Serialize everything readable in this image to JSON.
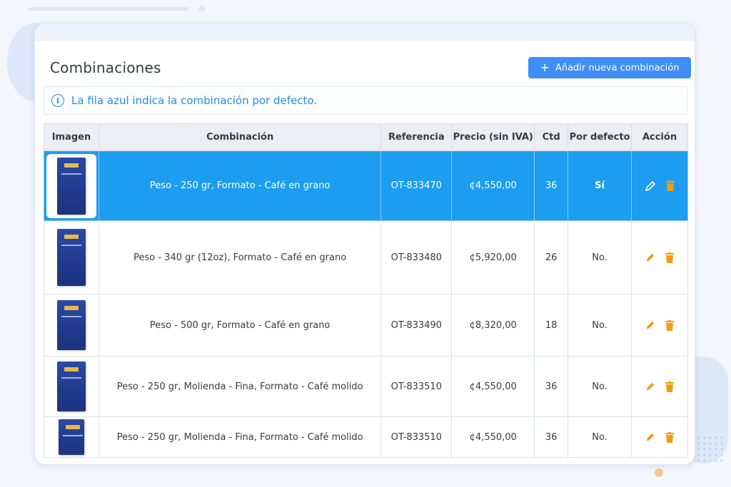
{
  "page": {
    "title": "Combinaciones",
    "add_button": "Añadir nueva combinación",
    "add_button_icon": "+",
    "alert": "La fila azul indica la combinación por defecto."
  },
  "table": {
    "headers": [
      "Imagen",
      "Combinación",
      "Referencia",
      "Precio (sin IVA)",
      "Ctd",
      "Por defecto",
      "Acción"
    ],
    "rows": [
      {
        "combination": "Peso - 250 gr, Formato - Café en grano",
        "reference": "OT-833470",
        "price": "¢4,550,00",
        "qty": "36",
        "default": "Sí",
        "is_default": true
      },
      {
        "combination": "Peso - 340 gr (12oz), Formato - Café en grano",
        "reference": "OT-833480",
        "price": "¢5,920,00",
        "qty": "26",
        "default": "No.",
        "is_default": false
      },
      {
        "combination": "Peso - 500 gr, Formato - Café en grano",
        "reference": "OT-833490",
        "price": "¢8,320,00",
        "qty": "18",
        "default": "No.",
        "is_default": false
      },
      {
        "combination": "Peso - 250 gr, Molienda - Fina, Formato - Café molido",
        "reference": "OT-833510",
        "price": "¢4,550,00",
        "qty": "36",
        "default": "No.",
        "is_default": false
      },
      {
        "combination": "Peso - 250 gr, Molienda - Fina, Formato - Café molido",
        "reference": "OT-833510",
        "price": "¢4,550,00",
        "qty": "36",
        "default": "No.",
        "is_default": false
      }
    ]
  },
  "icons": {
    "alert": "info-icon",
    "edit": "pencil-icon",
    "delete": "trash-icon"
  },
  "colors": {
    "accent": "#3f8ef7",
    "default_row": "#1c9df0",
    "alert_text": "#2c8bd8",
    "action_icons": "#f39c12"
  }
}
